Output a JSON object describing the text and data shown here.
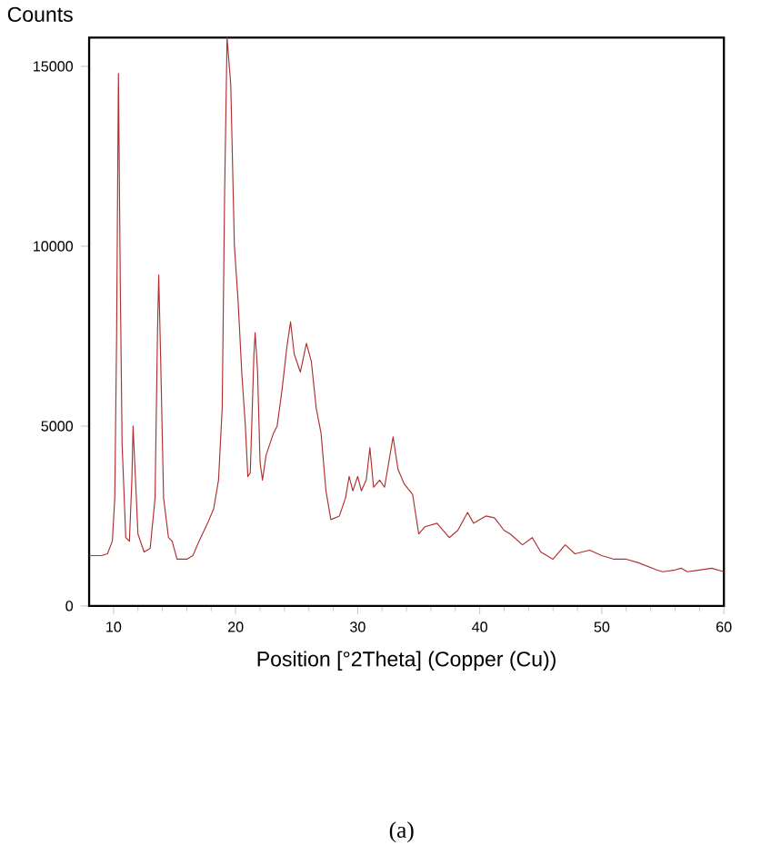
{
  "chart_data": {
    "type": "line",
    "xlabel": "Position [°2Theta] (Copper (Cu))",
    "ylabel": "Counts",
    "annotations": [
      "(a)"
    ],
    "xlim": [
      8,
      60
    ],
    "xticks": [
      10,
      20,
      30,
      40,
      50,
      60
    ],
    "ylim": [
      0,
      15800
    ],
    "yticks": [
      0,
      5000,
      10000,
      15000
    ],
    "grid": false,
    "marker": "none",
    "line_style": "solid",
    "series": [
      {
        "color": "#b03030",
        "x": [
          8,
          9,
          9.5,
          9.9,
          10.1,
          10.25,
          10.4,
          10.55,
          10.7,
          11,
          11.3,
          11.5,
          11.6,
          11.8,
          12.0,
          12.5,
          13.0,
          13.4,
          13.6,
          13.7,
          13.85,
          14.1,
          14.5,
          14.8,
          15.2,
          16,
          16.5,
          17,
          17.7,
          18.2,
          18.6,
          18.9,
          19.1,
          19.3,
          19.6,
          19.9,
          20.2,
          20.5,
          20.8,
          21.0,
          21.2,
          21.5,
          21.6,
          21.8,
          22.0,
          22.2,
          22.5,
          22.8,
          23.1,
          23.4,
          23.8,
          24.2,
          24.5,
          24.8,
          25.3,
          25.8,
          26.2,
          26.6,
          27.0,
          27.4,
          27.8,
          28.5,
          29.0,
          29.3,
          29.6,
          30.0,
          30.3,
          30.7,
          31.0,
          31.3,
          31.8,
          32.2,
          32.9,
          33.3,
          33.8,
          34.5,
          35.0,
          35.5,
          36.5,
          37.5,
          38.2,
          39.0,
          39.5,
          40.5,
          41.2,
          42,
          42.5,
          43.5,
          44.3,
          45,
          46,
          47.0,
          47.8,
          49,
          50,
          51,
          52,
          53,
          54.5,
          55,
          56,
          56.5,
          57,
          58,
          59,
          60
        ],
        "values": [
          1400,
          1400,
          1450,
          1800,
          3000,
          7500,
          14800,
          9000,
          4500,
          1900,
          1800,
          3500,
          5000,
          3500,
          2000,
          1500,
          1600,
          3000,
          7600,
          9200,
          7000,
          3000,
          1900,
          1800,
          1300,
          1300,
          1400,
          1800,
          2300,
          2700,
          3500,
          5500,
          11500,
          15800,
          14500,
          10000,
          8500,
          6500,
          5000,
          3600,
          3700,
          7000,
          7600,
          6500,
          4000,
          3500,
          4200,
          4500,
          4800,
          5000,
          6000,
          7200,
          7900,
          7000,
          6500,
          7300,
          6800,
          5500,
          4800,
          3200,
          2400,
          2500,
          3000,
          3600,
          3200,
          3600,
          3200,
          3500,
          4400,
          3300,
          3500,
          3300,
          4700,
          3800,
          3400,
          3100,
          2000,
          2200,
          2300,
          1900,
          2100,
          2600,
          2300,
          2500,
          2450,
          2100,
          2000,
          1700,
          1900,
          1500,
          1300,
          1700,
          1450,
          1550,
          1400,
          1300,
          1300,
          1200,
          1000,
          950,
          1000,
          1050,
          950,
          1000,
          1050,
          950
        ]
      }
    ]
  }
}
